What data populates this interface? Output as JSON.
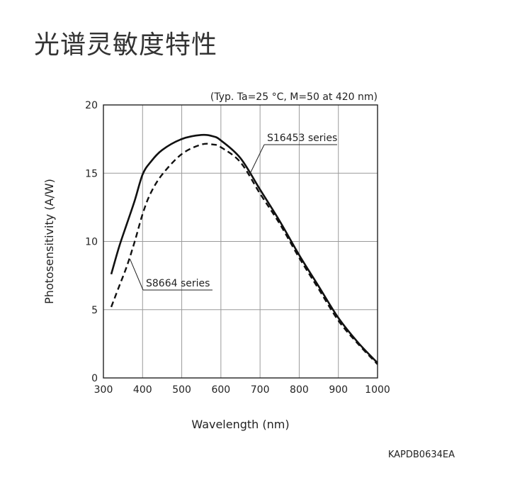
{
  "page": {
    "title": "光谱灵敏度特性",
    "doc_code": "KAPDB0634EA"
  },
  "chart_data": {
    "type": "line",
    "title": "",
    "condition_note": "(Typ. Ta=25 °C, M=50 at 420 nm)",
    "xlabel": "Wavelength (nm)",
    "ylabel": "Photosensitivity (A/W)",
    "xlim": [
      300,
      1000
    ],
    "ylim": [
      0,
      20
    ],
    "x_ticks": [
      300,
      400,
      500,
      600,
      700,
      800,
      900,
      1000
    ],
    "y_ticks": [
      0,
      5,
      10,
      15,
      20
    ],
    "grid": true,
    "series": [
      {
        "name": "S16453 series",
        "style": "solid",
        "color": "#111111",
        "x": [
          320,
          340,
          360,
          380,
          400,
          420,
          450,
          500,
          550,
          580,
          600,
          650,
          700,
          750,
          800,
          850,
          900,
          950,
          1000
        ],
        "y": [
          7.6,
          9.6,
          11.3,
          13.0,
          14.9,
          15.8,
          16.7,
          17.5,
          17.8,
          17.7,
          17.4,
          16.1,
          13.8,
          11.5,
          9.0,
          6.7,
          4.4,
          2.6,
          1.1
        ]
      },
      {
        "name": "S8664 series",
        "style": "dashed",
        "color": "#111111",
        "x": [
          320,
          340,
          360,
          380,
          400,
          420,
          450,
          500,
          550,
          580,
          600,
          650,
          700,
          750,
          800,
          850,
          900,
          950,
          1000
        ],
        "y": [
          5.2,
          6.7,
          8.2,
          10.0,
          12.0,
          13.5,
          14.9,
          16.4,
          17.1,
          17.1,
          16.9,
          15.8,
          13.5,
          11.3,
          8.8,
          6.5,
          4.2,
          2.5,
          1.0
        ]
      }
    ]
  }
}
